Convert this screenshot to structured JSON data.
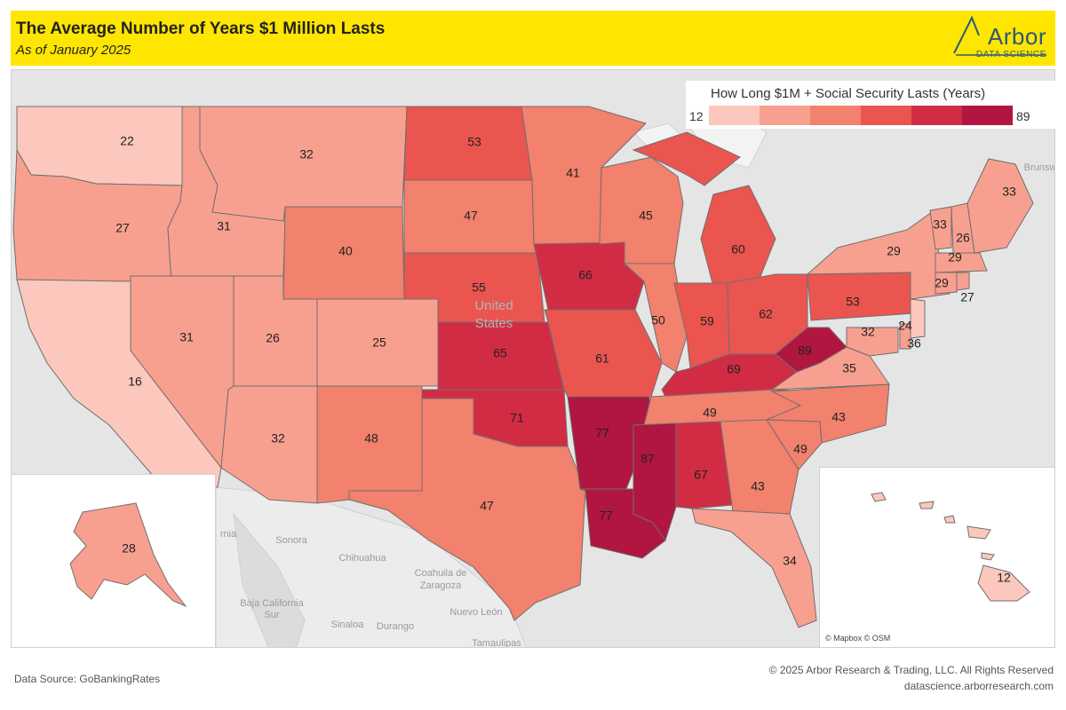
{
  "header": {
    "title": "The Average Number of Years $1 Million Lasts",
    "subtitle": "As of January 2025",
    "logo_word": "Arbor",
    "logo_sub": "DATA SCIENCE"
  },
  "legend": {
    "title": "How Long $1M + Social Security Lasts (Years)",
    "min": "12",
    "max": "89",
    "colors": [
      "#fcc7bc",
      "#f8a08f",
      "#f2816d",
      "#ea5550",
      "#d22c45",
      "#b0163f"
    ]
  },
  "map": {
    "us_label_line1": "United",
    "us_label_line2": "States",
    "attribution": "© Mapbox © OSM",
    "background_labels": [
      "Sonora",
      "Chihuahua",
      "Coahuila de",
      "Zaragoza",
      "Baja California",
      "Sur",
      "Sinaloa",
      "Durango",
      "Nuevo León",
      "Tamaulipas",
      "Brunsw",
      "rnia"
    ]
  },
  "chart_data": {
    "type": "choropleth",
    "title": "The Average Number of Years $1 Million Lasts",
    "subtitle": "As of January 2025",
    "value_label": "How Long $1M + Social Security Lasts (Years)",
    "range": [
      12,
      89
    ],
    "values": [
      {
        "state": "WA",
        "value": 22
      },
      {
        "state": "OR",
        "value": 27
      },
      {
        "state": "CA",
        "value": 16
      },
      {
        "state": "ID",
        "value": 31
      },
      {
        "state": "NV",
        "value": 31
      },
      {
        "state": "MT",
        "value": 32
      },
      {
        "state": "WY",
        "value": 40
      },
      {
        "state": "UT",
        "value": 26
      },
      {
        "state": "AZ",
        "value": 32
      },
      {
        "state": "CO",
        "value": 25
      },
      {
        "state": "NM",
        "value": 48
      },
      {
        "state": "ND",
        "value": 53
      },
      {
        "state": "SD",
        "value": 47
      },
      {
        "state": "NE",
        "value": 55
      },
      {
        "state": "KS",
        "value": 65
      },
      {
        "state": "OK",
        "value": 71
      },
      {
        "state": "TX",
        "value": 47
      },
      {
        "state": "MN",
        "value": 41
      },
      {
        "state": "IA",
        "value": 66
      },
      {
        "state": "MO",
        "value": 61
      },
      {
        "state": "AR",
        "value": 77
      },
      {
        "state": "LA",
        "value": 77
      },
      {
        "state": "WI",
        "value": 45
      },
      {
        "state": "IL",
        "value": 50
      },
      {
        "state": "MI",
        "value": 60
      },
      {
        "state": "IN",
        "value": 59
      },
      {
        "state": "OH",
        "value": 62
      },
      {
        "state": "KY",
        "value": 69
      },
      {
        "state": "TN",
        "value": 49
      },
      {
        "state": "MS",
        "value": 87
      },
      {
        "state": "AL",
        "value": 67
      },
      {
        "state": "GA",
        "value": 43
      },
      {
        "state": "FL",
        "value": 34
      },
      {
        "state": "SC",
        "value": 49
      },
      {
        "state": "NC",
        "value": 43
      },
      {
        "state": "VA",
        "value": 35
      },
      {
        "state": "WV",
        "value": 89
      },
      {
        "state": "PA",
        "value": 53
      },
      {
        "state": "NY",
        "value": 29
      },
      {
        "state": "VT",
        "value": 33
      },
      {
        "state": "NH",
        "value": 26
      },
      {
        "state": "ME",
        "value": 33
      },
      {
        "state": "MA",
        "value": 29
      },
      {
        "state": "CT",
        "value": 29
      },
      {
        "state": "RI",
        "value": 27
      },
      {
        "state": "NJ",
        "value": 24
      },
      {
        "state": "DE",
        "value": 36
      },
      {
        "state": "MD",
        "value": 32
      },
      {
        "state": "AK",
        "value": 28
      },
      {
        "state": "HI",
        "value": 12
      }
    ]
  },
  "footer": {
    "source": "Data Source: GoBankingRates",
    "copyright": "© 2025 Arbor Research & Trading, LLC. All Rights Reserved",
    "site": "datascience.arborresearch.com"
  }
}
